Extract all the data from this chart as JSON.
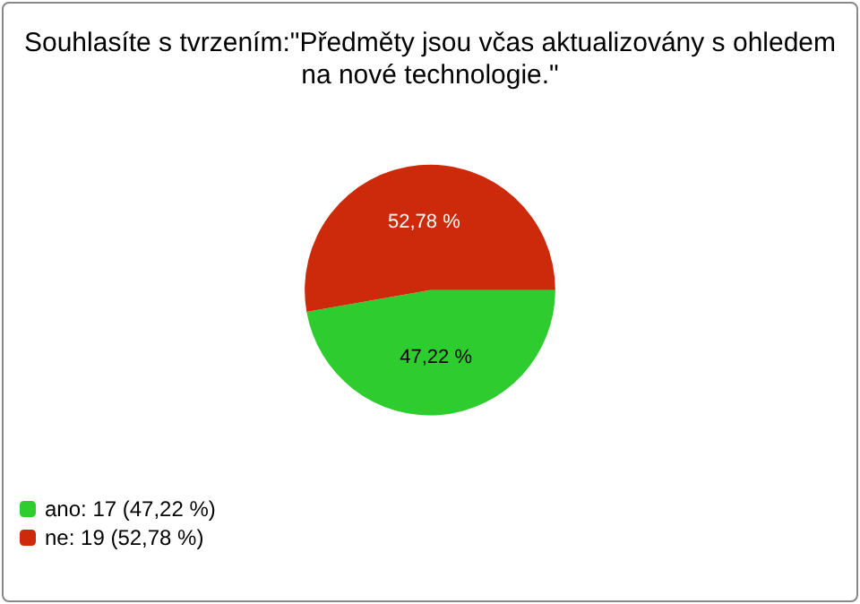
{
  "chart_data": {
    "type": "pie",
    "title": "Souhlasíte s tvrzením:\"Předměty jsou včas aktualizovány s ohledem\nna nové technologie.\"",
    "categories": [
      "ano: 17 (47,22 %)",
      "ne: 19 (52,78 %)"
    ],
    "values": [
      47.22,
      52.78
    ],
    "value_labels": [
      "47,22 %",
      "52,78 %"
    ],
    "colors": [
      "#2ecc2e",
      "#cc2a0a"
    ],
    "legend": "bottom left"
  }
}
